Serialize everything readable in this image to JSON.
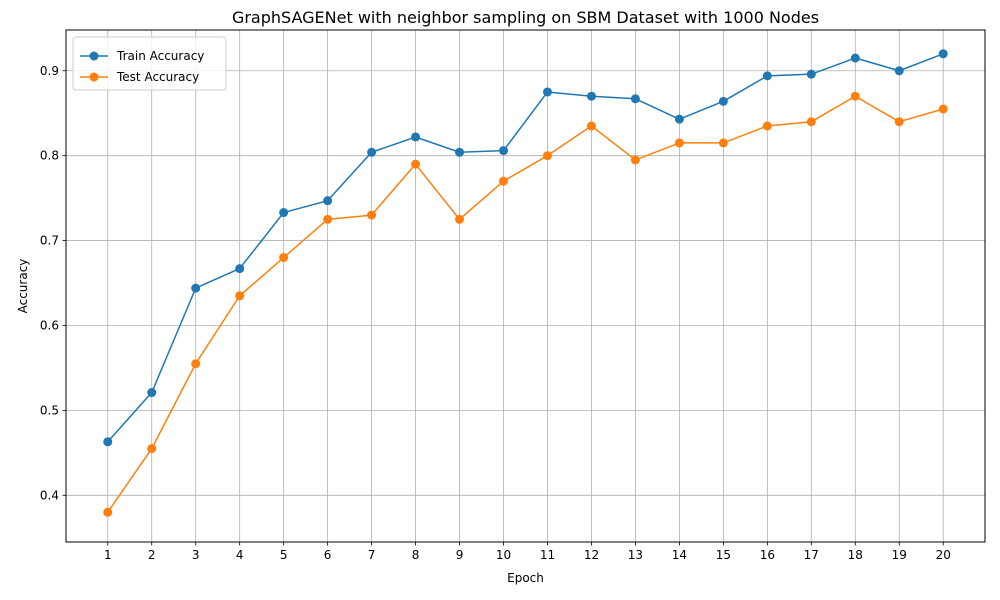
{
  "chart_data": {
    "type": "line",
    "title": "GraphSAGENet with neighbor sampling on SBM Dataset with 1000 Nodes",
    "xlabel": "Epoch",
    "ylabel": "Accuracy",
    "x": [
      1,
      2,
      3,
      4,
      5,
      6,
      7,
      8,
      9,
      10,
      11,
      12,
      13,
      14,
      15,
      16,
      17,
      18,
      19,
      20
    ],
    "xlim": [
      0.05,
      20.95
    ],
    "ylim": [
      0.345,
      0.948
    ],
    "yticks": [
      0.4,
      0.5,
      0.6,
      0.7,
      0.8,
      0.9
    ],
    "ytick_labels": [
      "0.4",
      "0.5",
      "0.6",
      "0.7",
      "0.8",
      "0.9"
    ],
    "grid": true,
    "legend_position": "top-left",
    "series": [
      {
        "name": "Train Accuracy",
        "color": "#1f77b4",
        "values": [
          0.463,
          0.521,
          0.644,
          0.667,
          0.733,
          0.747,
          0.804,
          0.822,
          0.804,
          0.806,
          0.875,
          0.87,
          0.867,
          0.843,
          0.864,
          0.894,
          0.896,
          0.915,
          0.9,
          0.92
        ]
      },
      {
        "name": "Test Accuracy",
        "color": "#ff7f0e",
        "values": [
          0.38,
          0.455,
          0.555,
          0.635,
          0.68,
          0.725,
          0.73,
          0.79,
          0.725,
          0.77,
          0.8,
          0.835,
          0.795,
          0.815,
          0.815,
          0.835,
          0.84,
          0.87,
          0.84,
          0.855
        ]
      }
    ]
  }
}
